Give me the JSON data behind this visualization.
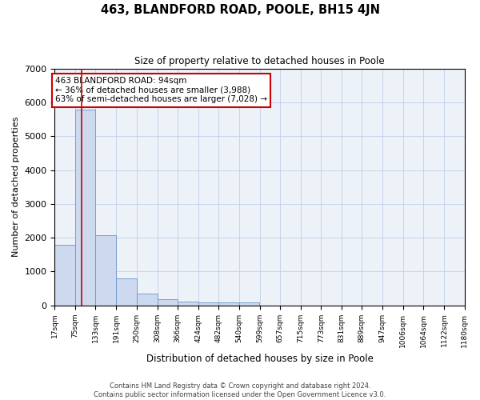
{
  "title": "463, BLANDFORD ROAD, POOLE, BH15 4JN",
  "subtitle": "Size of property relative to detached houses in Poole",
  "xlabel": "Distribution of detached houses by size in Poole",
  "ylabel": "Number of detached properties",
  "footer_line1": "Contains HM Land Registry data © Crown copyright and database right 2024.",
  "footer_line2": "Contains public sector information licensed under the Open Government Licence v3.0.",
  "bar_color": "#ccd9ef",
  "bar_edge_color": "#6b96c8",
  "grid_color": "#c0cfe8",
  "annotation_text": "463 BLANDFORD ROAD: 94sqm\n← 36% of detached houses are smaller (3,988)\n63% of semi-detached houses are larger (7,028) →",
  "annotation_box_color": "#ffffff",
  "annotation_box_edge_color": "#cc0000",
  "red_line_color": "#cc0000",
  "property_size_sqm": 94,
  "ylim": [
    0,
    7000
  ],
  "yticks": [
    0,
    1000,
    2000,
    3000,
    4000,
    5000,
    6000,
    7000
  ],
  "bins": [
    17,
    75,
    133,
    191,
    250,
    308,
    366,
    424,
    482,
    540,
    599,
    657,
    715,
    773,
    831,
    889,
    947,
    1006,
    1064,
    1122,
    1180
  ],
  "bin_labels": [
    "17sqm",
    "75sqm",
    "133sqm",
    "191sqm",
    "250sqm",
    "308sqm",
    "366sqm",
    "424sqm",
    "482sqm",
    "540sqm",
    "599sqm",
    "657sqm",
    "715sqm",
    "773sqm",
    "831sqm",
    "889sqm",
    "947sqm",
    "1006sqm",
    "1064sqm",
    "1122sqm",
    "1180sqm"
  ],
  "bar_heights": [
    1780,
    5780,
    2080,
    790,
    340,
    195,
    120,
    100,
    95,
    80,
    0,
    0,
    0,
    0,
    0,
    0,
    0,
    0,
    0,
    0
  ]
}
